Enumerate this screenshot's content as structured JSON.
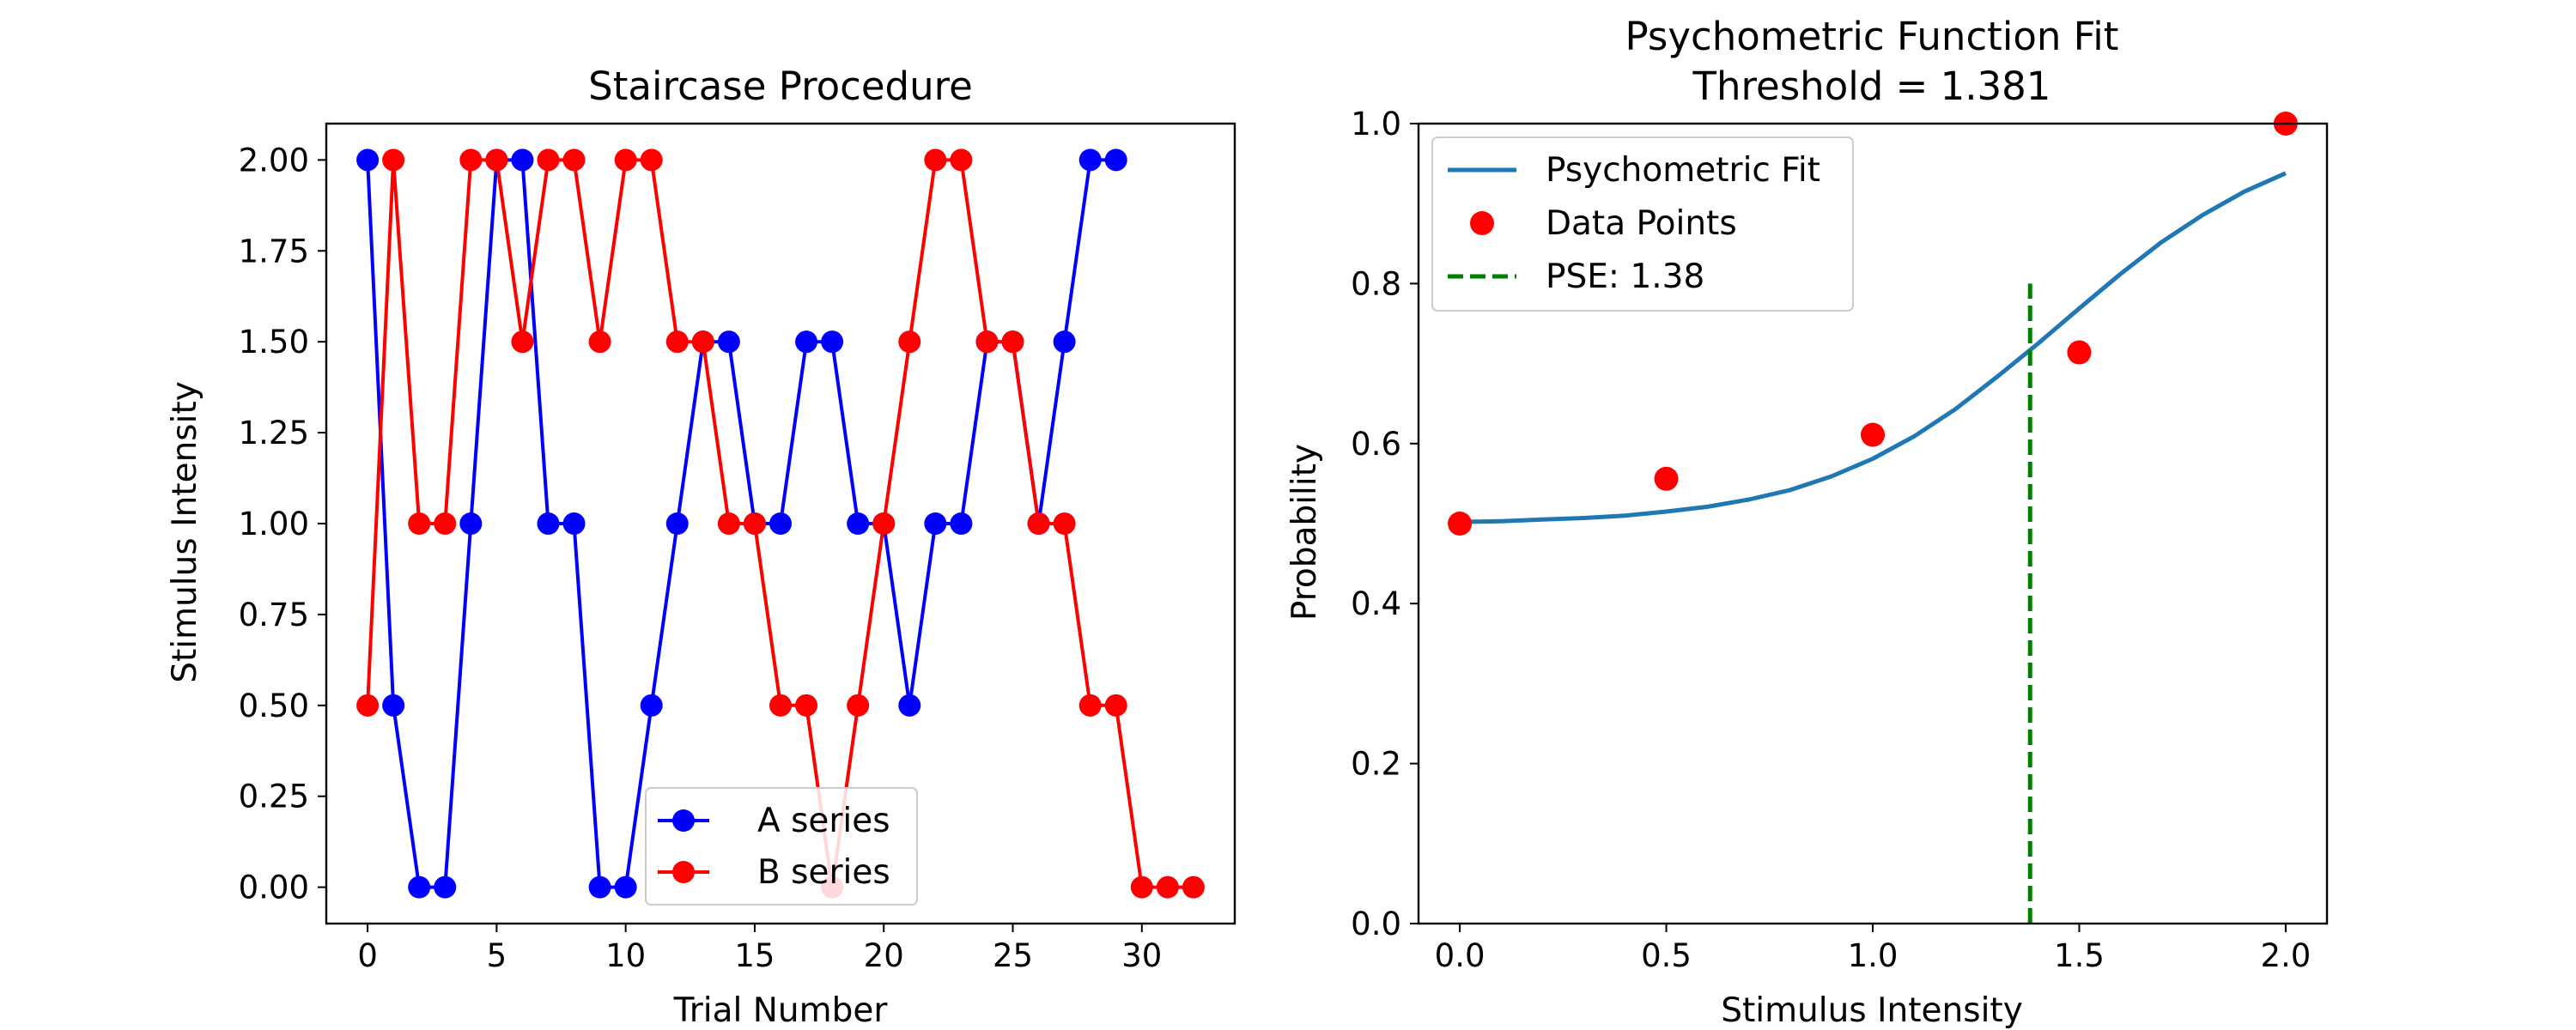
{
  "chart_data": [
    {
      "type": "line",
      "title": "Staircase Procedure",
      "xlabel": "Trial Number",
      "ylabel": "Stimulus Intensity",
      "xlim": [
        -1.6,
        33.6
      ],
      "ylim": [
        -0.1,
        2.1
      ],
      "xticks": [
        0,
        5,
        10,
        15,
        20,
        25,
        30
      ],
      "yticks": [
        0.0,
        0.25,
        0.5,
        0.75,
        1.0,
        1.25,
        1.5,
        1.75,
        2.0
      ],
      "xtick_labels": [
        "0",
        "5",
        "10",
        "15",
        "20",
        "25",
        "30"
      ],
      "ytick_labels": [
        "0.00",
        "0.25",
        "0.50",
        "0.75",
        "1.00",
        "1.25",
        "1.50",
        "1.75",
        "2.00"
      ],
      "grid": false,
      "legend_position": "lower center",
      "series": [
        {
          "name": "A series",
          "color": "#0000ff",
          "marker": "circle",
          "x": [
            0,
            1,
            2,
            3,
            4,
            5,
            6,
            7,
            8,
            9,
            10,
            11,
            12,
            13,
            14,
            15,
            16,
            17,
            18,
            19,
            20,
            21,
            22,
            23,
            24,
            25,
            26,
            27,
            28,
            29
          ],
          "y": [
            2.0,
            0.5,
            0.0,
            0.0,
            1.0,
            2.0,
            2.0,
            1.0,
            1.0,
            0.0,
            0.0,
            0.5,
            1.0,
            1.5,
            1.5,
            1.0,
            1.0,
            1.5,
            1.5,
            1.0,
            1.0,
            0.5,
            1.0,
            1.0,
            1.5,
            1.5,
            1.0,
            1.5,
            2.0,
            2.0
          ]
        },
        {
          "name": "B series",
          "color": "#ff0000",
          "marker": "circle",
          "x": [
            0,
            1,
            2,
            3,
            4,
            5,
            6,
            7,
            8,
            9,
            10,
            11,
            12,
            13,
            14,
            15,
            16,
            17,
            18,
            19,
            20,
            21,
            22,
            23,
            24,
            25,
            26,
            27,
            28,
            29,
            30,
            31,
            32
          ],
          "y": [
            0.5,
            2.0,
            1.0,
            1.0,
            2.0,
            2.0,
            1.5,
            2.0,
            2.0,
            1.5,
            2.0,
            2.0,
            1.5,
            1.5,
            1.0,
            1.0,
            0.5,
            0.5,
            0.0,
            0.5,
            1.0,
            1.5,
            2.0,
            2.0,
            1.5,
            1.5,
            1.0,
            1.0,
            0.5,
            0.5,
            0.0,
            0.0,
            0.0
          ]
        }
      ]
    },
    {
      "type": "line",
      "title": "Psychometric Function Fit",
      "subtitle": "Threshold = 1.381",
      "xlabel": "Stimulus Intensity",
      "ylabel": "Probability",
      "xlim": [
        -0.1,
        2.1
      ],
      "ylim": [
        0.0,
        1.0
      ],
      "xticks": [
        0.0,
        0.5,
        1.0,
        1.5,
        2.0
      ],
      "yticks": [
        0.0,
        0.2,
        0.4,
        0.6,
        0.8,
        1.0
      ],
      "xtick_labels": [
        "0.0",
        "0.5",
        "1.0",
        "1.5",
        "2.0"
      ],
      "ytick_labels": [
        "0.0",
        "0.2",
        "0.4",
        "0.6",
        "0.8",
        "1.0"
      ],
      "grid": false,
      "legend_position": "upper left",
      "fit": {
        "name": "Psychometric Fit",
        "color": "#1f77b4",
        "x": [
          0.0,
          0.1,
          0.2,
          0.3,
          0.4,
          0.5,
          0.6,
          0.7,
          0.8,
          0.9,
          1.0,
          1.1,
          1.2,
          1.3,
          1.4,
          1.5,
          1.6,
          1.7,
          1.8,
          1.9,
          2.0
        ],
        "y": [
          0.502,
          0.503,
          0.505,
          0.507,
          0.51,
          0.515,
          0.521,
          0.53,
          0.542,
          0.559,
          0.581,
          0.609,
          0.643,
          0.683,
          0.725,
          0.769,
          0.812,
          0.852,
          0.886,
          0.915,
          0.938
        ]
      },
      "points": {
        "name": "Data Points",
        "color": "#ff0000",
        "x": [
          0.0,
          0.5,
          1.0,
          1.5,
          2.0
        ],
        "y": [
          0.5,
          0.556,
          0.611,
          0.714,
          1.0
        ]
      },
      "pse": {
        "name": "PSE: 1.38",
        "color": "#008000",
        "x": 1.381,
        "y_range": [
          0.0,
          0.8
        ]
      }
    }
  ]
}
